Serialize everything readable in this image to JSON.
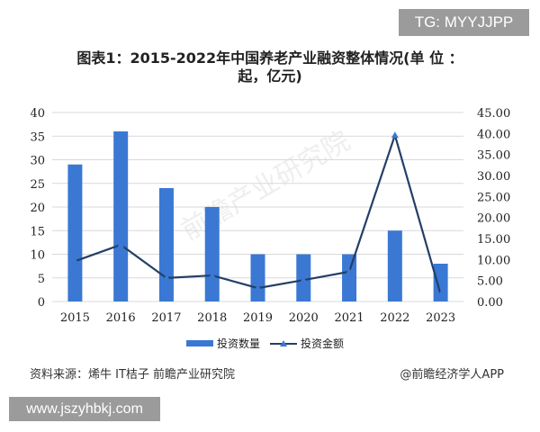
{
  "watermark_top": "TG: MYYJJPP",
  "title": "图表1：2015-2022年中国养老产业融资整体情况(单 位 ：起，亿元)",
  "title_line1": "图表1：2015-2022年中国养老产业融资整体情况(单 位 ：",
  "title_line2": "起，亿元)",
  "bg_watermark": "前瞻产业研究院",
  "source": "资料来源：烯牛 IT桔子 前瞻产业研究院",
  "credit": "@前瞻经济学人APP",
  "watermark_bottom": "www.jszyhbkj.com",
  "colors": {
    "bar": "#3a78d4",
    "line": "#243f66",
    "marker": "#3a78d4",
    "grid": "#d9d9d9"
  },
  "chart_data": {
    "type": "bar+line",
    "title": "图表1：2015-2022年中国养老产业融资整体情况(单 位 ：起，亿元)",
    "categories": [
      "2015",
      "2016",
      "2017",
      "2018",
      "2019",
      "2020",
      "2021",
      "2022",
      "2023"
    ],
    "series": [
      {
        "name": "投资数量",
        "type": "bar",
        "axis": "left",
        "values": [
          29,
          36,
          24,
          20,
          10,
          10,
          10,
          15,
          8
        ]
      },
      {
        "name": "投资金额",
        "type": "line",
        "axis": "right",
        "values": [
          9.6,
          13.5,
          5.6,
          6.2,
          3.2,
          5.1,
          7.1,
          39.6,
          1.7
        ]
      }
    ],
    "left_axis": {
      "ticks": [
        "0",
        "5",
        "10",
        "15",
        "20",
        "25",
        "30",
        "35",
        "40"
      ],
      "ylim": [
        0,
        40
      ]
    },
    "right_axis": {
      "ticks": [
        "0.00",
        "5.00",
        "10.00",
        "15.00",
        "20.00",
        "25.00",
        "30.00",
        "35.00",
        "40.00",
        "45.00"
      ],
      "ylim": [
        0,
        45
      ]
    },
    "legend": [
      "投资数量",
      "投资金额"
    ],
    "legend_position": "bottom",
    "grid": true
  }
}
